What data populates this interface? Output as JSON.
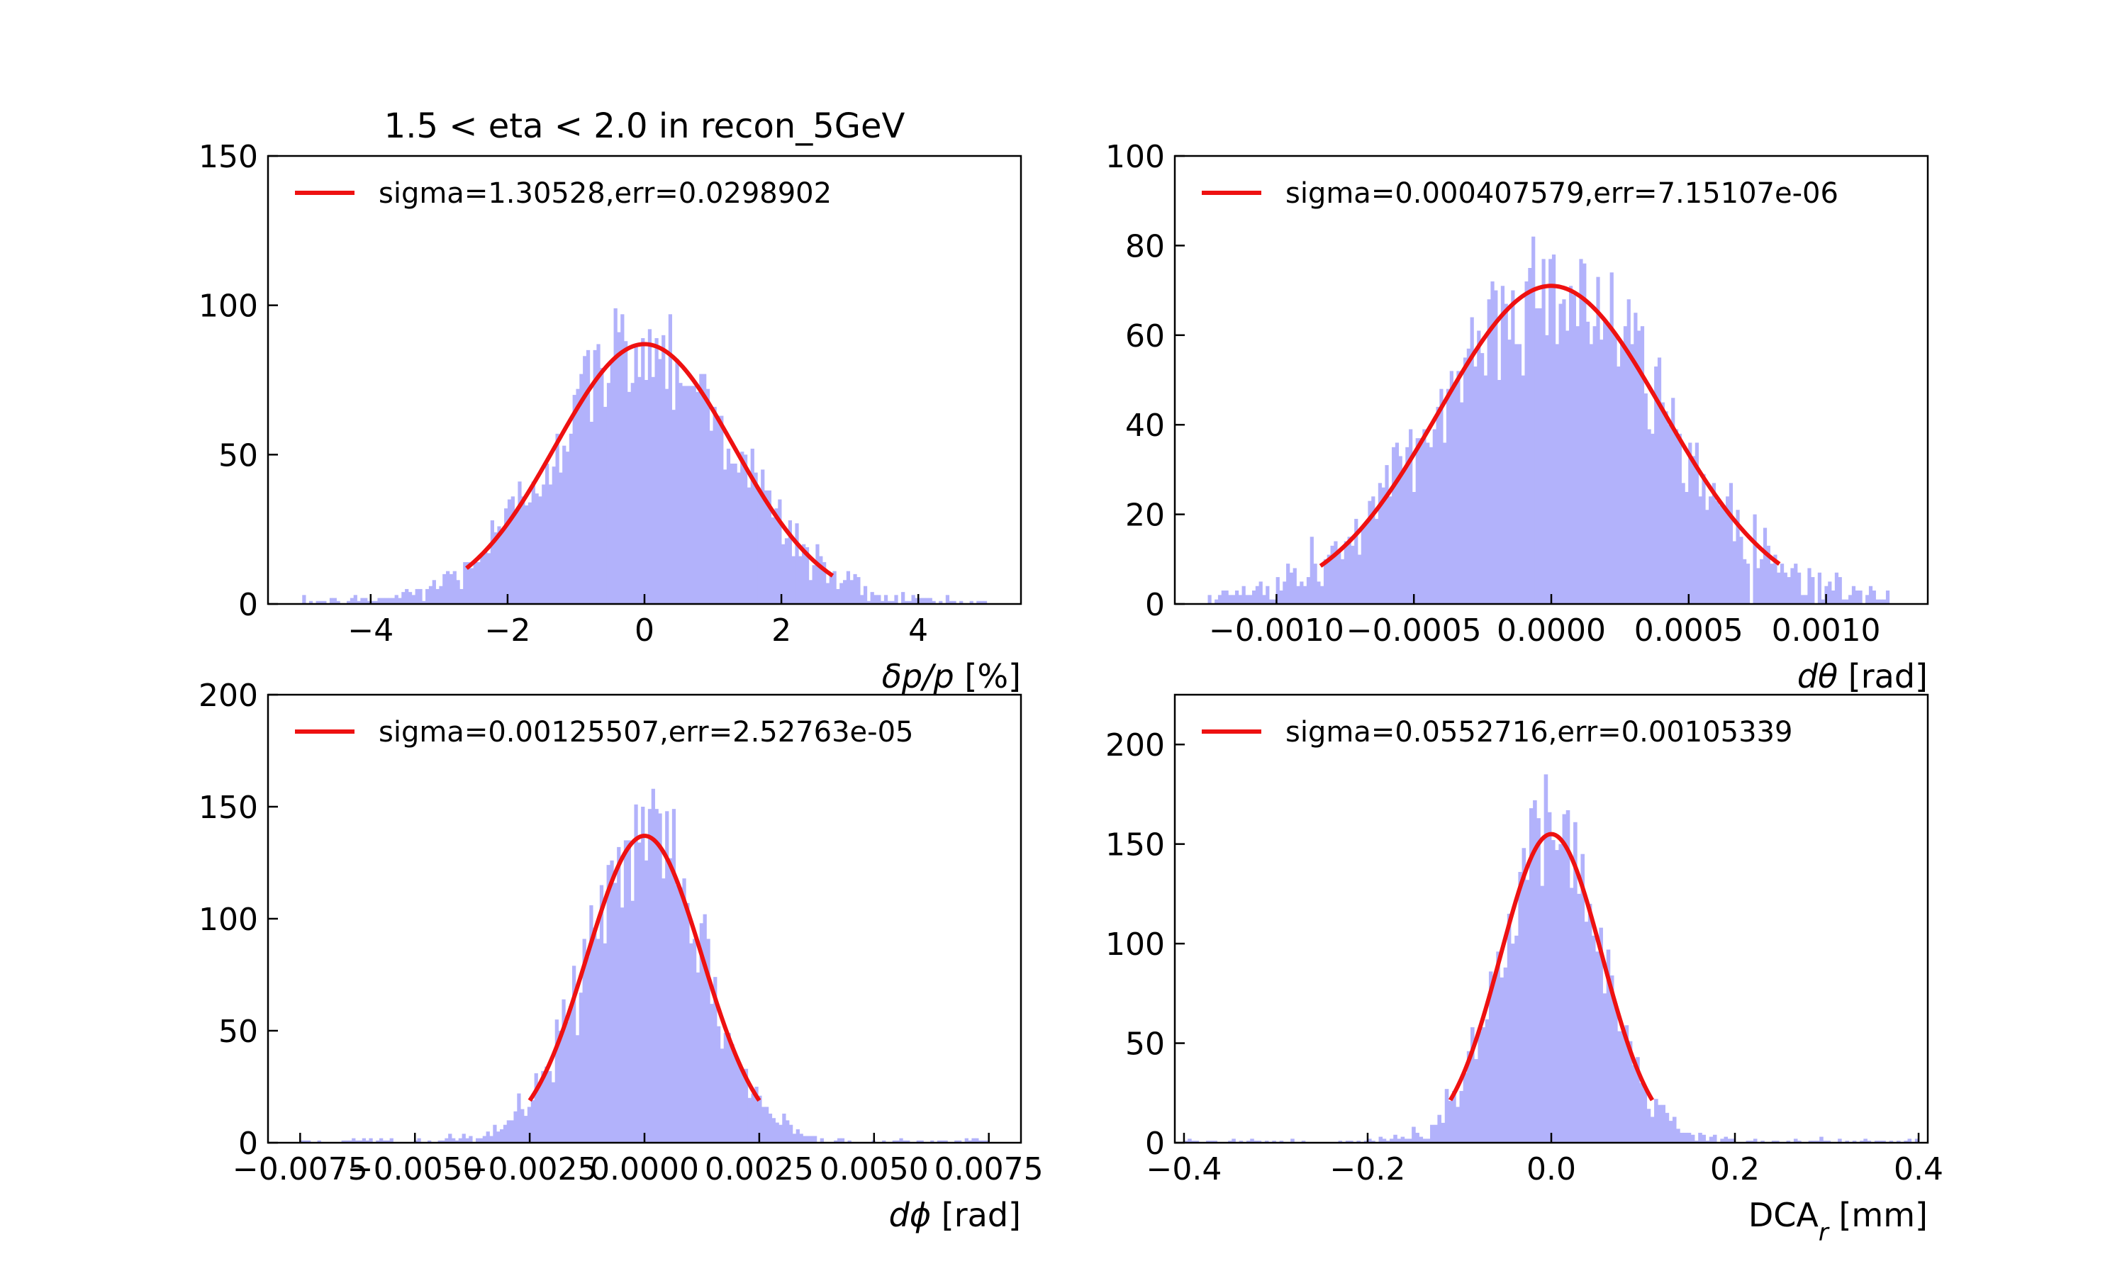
{
  "chart_data": [
    {
      "type": "histogram",
      "title": "1.5 < eta < 2.0 in recon_5GeV",
      "xlabel": "δp/p [%]",
      "ylabel": "",
      "xlim": [
        -5.5,
        5.5
      ],
      "ylim": [
        0,
        150
      ],
      "xticks": [
        -4,
        -2,
        0,
        2,
        4
      ],
      "xtick_labels": [
        "−4",
        "−2",
        "0",
        "2",
        "4"
      ],
      "yticks": [
        0,
        50,
        100,
        150
      ],
      "ytick_labels": [
        "0",
        "50",
        "100",
        "150"
      ],
      "hist": {
        "range": [
          -5,
          5
        ],
        "bins": 200,
        "peak": 87,
        "sigma": 1.30528,
        "color": "#b2b2fb"
      },
      "fit": {
        "mu": 0,
        "sigma": 1.30528,
        "amplitude": 87,
        "range": [
          -2.6,
          2.75
        ],
        "color": "#ee1111"
      },
      "legend": {
        "label": "sigma=1.30528,err=0.0298902",
        "position": "top-left"
      }
    },
    {
      "type": "histogram",
      "title": "",
      "xlabel": "dθ [rad]",
      "ylabel": "",
      "xlim": [
        -0.00137,
        0.00137
      ],
      "ylim": [
        0,
        100
      ],
      "xticks": [
        -0.001,
        -0.0005,
        0,
        0.0005,
        0.001
      ],
      "xtick_labels": [
        "−0.0010",
        "−0.0005",
        "0.0000",
        "0.0005",
        "0.0010"
      ],
      "yticks": [
        0,
        20,
        40,
        60,
        80,
        100
      ],
      "ytick_labels": [
        "0",
        "20",
        "40",
        "60",
        "80",
        "100"
      ],
      "hist": {
        "range": [
          -0.00125,
          0.00123
        ],
        "bins": 200,
        "peak": 71,
        "sigma": 0.000407579,
        "color": "#b2b2fb"
      },
      "fit": {
        "mu": 0,
        "sigma": 0.000407579,
        "amplitude": 71,
        "range": [
          -0.00084,
          0.00083
        ],
        "color": "#ee1111"
      },
      "legend": {
        "label": "sigma=0.000407579,err=7.15107e-06",
        "position": "top-left"
      }
    },
    {
      "type": "histogram",
      "title": "",
      "xlabel": "dϕ [rad]",
      "ylabel": "",
      "xlim": [
        -0.0082,
        0.0082
      ],
      "ylim": [
        0,
        200
      ],
      "xticks": [
        -0.0075,
        -0.005,
        -0.0025,
        0,
        0.0025,
        0.005,
        0.0075
      ],
      "xtick_labels": [
        "−0.0075",
        "−0.0050",
        "−0.0025",
        "0.0000",
        "0.0025",
        "0.0050",
        "0.0075"
      ],
      "yticks": [
        0,
        50,
        100,
        150,
        200
      ],
      "ytick_labels": [
        "0",
        "50",
        "100",
        "150",
        "200"
      ],
      "hist": {
        "range": [
          -0.0075,
          0.0075
        ],
        "bins": 200,
        "peak": 137,
        "sigma": 0.00125507,
        "color": "#b2b2fb"
      },
      "fit": {
        "mu": 0,
        "sigma": 0.00125507,
        "amplitude": 137,
        "range": [
          -0.0025,
          0.0025
        ],
        "color": "#ee1111"
      },
      "legend": {
        "label": "sigma=0.00125507,err=2.52763e-05",
        "position": "top-left"
      }
    },
    {
      "type": "histogram",
      "title": "",
      "xlabel": "DCA_r [mm]",
      "ylabel": "",
      "xlim": [
        -0.41,
        0.41
      ],
      "ylim": [
        0,
        225
      ],
      "xticks": [
        -0.4,
        -0.2,
        0,
        0.2,
        0.4
      ],
      "xtick_labels": [
        "−0.4",
        "−0.2",
        "0.0",
        "0.2",
        "0.4"
      ],
      "yticks": [
        0,
        50,
        100,
        150,
        200
      ],
      "ytick_labels": [
        "0",
        "50",
        "100",
        "150",
        "200"
      ],
      "hist": {
        "range": [
          -0.4,
          0.4
        ],
        "bins": 200,
        "peak": 155,
        "sigma": 0.0552716,
        "color": "#b2b2fb"
      },
      "fit": {
        "mu": 0,
        "sigma": 0.0552716,
        "amplitude": 155,
        "range": [
          -0.11,
          0.11
        ],
        "color": "#ee1111"
      },
      "legend": {
        "label": "sigma=0.0552716,err=0.00105339",
        "position": "top-left"
      }
    }
  ]
}
